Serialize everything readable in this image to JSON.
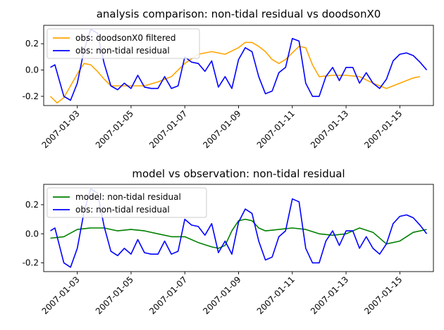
{
  "chart_data": [
    {
      "type": "line",
      "title": "analysis comparison: non-tidal residual vs doodsonX0",
      "xlabel": "",
      "ylabel": "",
      "xlim": [
        "2007-01-01T18:00",
        "2007-01-16T06:00"
      ],
      "ylim": [
        -0.27,
        0.34
      ],
      "yticks": [
        "-0.2",
        "0.0",
        "0.2"
      ],
      "xticks": [
        "2007-01-03",
        "2007-01-05",
        "2007-01-07",
        "2007-01-09",
        "2007-01-11",
        "2007-01-13",
        "2007-01-15"
      ],
      "legend_position": "top-left",
      "series": [
        {
          "name": "obs: doodsonX0 filtered",
          "color": "#ffa500",
          "x": [
            "2007-01-02T00:00",
            "2007-01-02T06:00",
            "2007-01-02T12:00",
            "2007-01-02T18:00",
            "2007-01-03T00:00",
            "2007-01-03T06:00",
            "2007-01-03T12:00",
            "2007-01-03T18:00",
            "2007-01-04T00:00",
            "2007-01-04T06:00",
            "2007-01-04T12:00",
            "2007-01-04T18:00",
            "2007-01-05T00:00",
            "2007-01-05T12:00",
            "2007-01-06T00:00",
            "2007-01-06T12:00",
            "2007-01-07T00:00",
            "2007-01-07T12:00",
            "2007-01-08T00:00",
            "2007-01-08T12:00",
            "2007-01-09T00:00",
            "2007-01-09T06:00",
            "2007-01-09T12:00",
            "2007-01-09T18:00",
            "2007-01-10T00:00",
            "2007-01-10T06:00",
            "2007-01-10T12:00",
            "2007-01-10T18:00",
            "2007-01-11T00:00",
            "2007-01-11T06:00",
            "2007-01-11T12:00",
            "2007-01-11T18:00",
            "2007-01-12T00:00",
            "2007-01-12T12:00",
            "2007-01-13T00:00",
            "2007-01-13T12:00",
            "2007-01-14T00:00",
            "2007-01-14T12:00",
            "2007-01-15T00:00",
            "2007-01-15T12:00",
            "2007-01-15T18:00"
          ],
          "y": [
            -0.2,
            -0.25,
            -0.21,
            -0.12,
            -0.03,
            0.05,
            0.04,
            -0.01,
            -0.07,
            -0.12,
            -0.12,
            -0.12,
            -0.12,
            -0.12,
            -0.09,
            -0.05,
            0.05,
            0.12,
            0.14,
            0.12,
            0.17,
            0.21,
            0.21,
            0.18,
            0.14,
            0.08,
            0.05,
            0.08,
            0.13,
            0.18,
            0.17,
            0.04,
            -0.05,
            -0.04,
            -0.04,
            -0.05,
            -0.1,
            -0.14,
            -0.1,
            -0.06,
            -0.05
          ]
        },
        {
          "name": "obs: non-tidal residual",
          "color": "#0000ff",
          "x": [
            "2007-01-02T00:00",
            "2007-01-02T04:00",
            "2007-01-02T12:00",
            "2007-01-02T18:00",
            "2007-01-03T00:00",
            "2007-01-03T06:00",
            "2007-01-03T12:00",
            "2007-01-03T18:00",
            "2007-01-04T00:00",
            "2007-01-04T06:00",
            "2007-01-04T12:00",
            "2007-01-04T18:00",
            "2007-01-05T00:00",
            "2007-01-05T06:00",
            "2007-01-05T12:00",
            "2007-01-05T18:00",
            "2007-01-06T00:00",
            "2007-01-06T06:00",
            "2007-01-06T12:00",
            "2007-01-06T18:00",
            "2007-01-07T00:00",
            "2007-01-07T06:00",
            "2007-01-07T12:00",
            "2007-01-07T18:00",
            "2007-01-08T00:00",
            "2007-01-08T06:00",
            "2007-01-08T12:00",
            "2007-01-08T18:00",
            "2007-01-09T00:00",
            "2007-01-09T06:00",
            "2007-01-09T12:00",
            "2007-01-09T18:00",
            "2007-01-10T00:00",
            "2007-01-10T06:00",
            "2007-01-10T12:00",
            "2007-01-10T18:00",
            "2007-01-11T00:00",
            "2007-01-11T06:00",
            "2007-01-11T12:00",
            "2007-01-11T18:00",
            "2007-01-12T00:00",
            "2007-01-12T06:00",
            "2007-01-12T12:00",
            "2007-01-12T18:00",
            "2007-01-13T00:00",
            "2007-01-13T06:00",
            "2007-01-13T12:00",
            "2007-01-13T18:00",
            "2007-01-14T00:00",
            "2007-01-14T06:00",
            "2007-01-14T12:00",
            "2007-01-14T18:00",
            "2007-01-15T00:00",
            "2007-01-15T06:00",
            "2007-01-15T12:00",
            "2007-01-15T18:00",
            "2007-01-16T00:00"
          ],
          "y": [
            0.02,
            0.04,
            -0.2,
            -0.23,
            -0.1,
            0.15,
            0.31,
            0.28,
            0.05,
            -0.12,
            -0.15,
            -0.1,
            -0.14,
            -0.04,
            -0.13,
            -0.14,
            -0.14,
            -0.05,
            -0.14,
            -0.12,
            0.1,
            0.06,
            0.05,
            -0.01,
            0.07,
            -0.13,
            -0.05,
            -0.14,
            0.08,
            0.17,
            0.14,
            -0.05,
            -0.18,
            -0.16,
            -0.02,
            0.02,
            0.24,
            0.22,
            -0.1,
            -0.2,
            -0.2,
            -0.05,
            0.02,
            -0.08,
            0.02,
            0.02,
            -0.1,
            -0.02,
            -0.1,
            -0.14,
            -0.07,
            0.07,
            0.12,
            0.13,
            0.11,
            0.06,
            0.0
          ]
        }
      ]
    },
    {
      "type": "line",
      "title": "model vs observation: non-tidal residual",
      "xlabel": "",
      "ylabel": "",
      "xlim": [
        "2007-01-01T18:00",
        "2007-01-16T06:00"
      ],
      "ylim": [
        -0.26,
        0.34
      ],
      "yticks": [
        "-0.2",
        "0.0",
        "0.2"
      ],
      "xticks": [
        "2007-01-03",
        "2007-01-05",
        "2007-01-07",
        "2007-01-09",
        "2007-01-11",
        "2007-01-13",
        "2007-01-15"
      ],
      "legend_position": "top-left",
      "series": [
        {
          "name": "model: non-tidal residual",
          "color": "#008000",
          "x": [
            "2007-01-02T00:00",
            "2007-01-02T12:00",
            "2007-01-03T00:00",
            "2007-01-03T12:00",
            "2007-01-04T00:00",
            "2007-01-04T12:00",
            "2007-01-05T00:00",
            "2007-01-05T12:00",
            "2007-01-06T00:00",
            "2007-01-06T12:00",
            "2007-01-07T00:00",
            "2007-01-07T12:00",
            "2007-01-08T00:00",
            "2007-01-08T06:00",
            "2007-01-08T12:00",
            "2007-01-08T18:00",
            "2007-01-09T00:00",
            "2007-01-09T06:00",
            "2007-01-09T12:00",
            "2007-01-09T18:00",
            "2007-01-10T00:00",
            "2007-01-10T12:00",
            "2007-01-11T00:00",
            "2007-01-11T12:00",
            "2007-01-12T00:00",
            "2007-01-12T12:00",
            "2007-01-13T00:00",
            "2007-01-13T12:00",
            "2007-01-14T00:00",
            "2007-01-14T12:00",
            "2007-01-15T00:00",
            "2007-01-15T12:00",
            "2007-01-16T00:00"
          ],
          "y": [
            -0.03,
            -0.02,
            0.03,
            0.04,
            0.04,
            0.02,
            0.03,
            0.02,
            0.0,
            -0.02,
            -0.02,
            -0.06,
            -0.09,
            -0.1,
            -0.08,
            0.02,
            0.09,
            0.1,
            0.09,
            0.04,
            0.02,
            0.03,
            0.04,
            0.03,
            0.0,
            -0.01,
            0.0,
            0.04,
            0.01,
            -0.07,
            -0.05,
            0.01,
            0.03
          ]
        },
        {
          "name": "obs: non-tidal residual",
          "color": "#0000ff",
          "x": [
            "2007-01-02T00:00",
            "2007-01-02T04:00",
            "2007-01-02T12:00",
            "2007-01-02T18:00",
            "2007-01-03T00:00",
            "2007-01-03T06:00",
            "2007-01-03T12:00",
            "2007-01-03T18:00",
            "2007-01-04T00:00",
            "2007-01-04T06:00",
            "2007-01-04T12:00",
            "2007-01-04T18:00",
            "2007-01-05T00:00",
            "2007-01-05T06:00",
            "2007-01-05T12:00",
            "2007-01-05T18:00",
            "2007-01-06T00:00",
            "2007-01-06T06:00",
            "2007-01-06T12:00",
            "2007-01-06T18:00",
            "2007-01-07T00:00",
            "2007-01-07T06:00",
            "2007-01-07T12:00",
            "2007-01-07T18:00",
            "2007-01-08T00:00",
            "2007-01-08T06:00",
            "2007-01-08T12:00",
            "2007-01-08T18:00",
            "2007-01-09T00:00",
            "2007-01-09T06:00",
            "2007-01-09T12:00",
            "2007-01-09T18:00",
            "2007-01-10T00:00",
            "2007-01-10T06:00",
            "2007-01-10T12:00",
            "2007-01-10T18:00",
            "2007-01-11T00:00",
            "2007-01-11T06:00",
            "2007-01-11T12:00",
            "2007-01-11T18:00",
            "2007-01-12T00:00",
            "2007-01-12T06:00",
            "2007-01-12T12:00",
            "2007-01-12T18:00",
            "2007-01-13T00:00",
            "2007-01-13T06:00",
            "2007-01-13T12:00",
            "2007-01-13T18:00",
            "2007-01-14T00:00",
            "2007-01-14T06:00",
            "2007-01-14T12:00",
            "2007-01-14T18:00",
            "2007-01-15T00:00",
            "2007-01-15T06:00",
            "2007-01-15T12:00",
            "2007-01-15T18:00",
            "2007-01-16T00:00"
          ],
          "y": [
            0.02,
            0.04,
            -0.2,
            -0.23,
            -0.1,
            0.15,
            0.31,
            0.28,
            0.05,
            -0.12,
            -0.15,
            -0.1,
            -0.14,
            -0.04,
            -0.13,
            -0.14,
            -0.14,
            -0.05,
            -0.14,
            -0.12,
            0.1,
            0.06,
            0.05,
            -0.01,
            0.07,
            -0.13,
            -0.05,
            -0.14,
            0.08,
            0.17,
            0.14,
            -0.05,
            -0.18,
            -0.16,
            -0.02,
            0.02,
            0.24,
            0.22,
            -0.1,
            -0.2,
            -0.2,
            -0.05,
            0.02,
            -0.08,
            0.02,
            0.02,
            -0.1,
            -0.02,
            -0.1,
            -0.14,
            -0.07,
            0.07,
            0.12,
            0.13,
            0.11,
            0.06,
            0.0
          ]
        }
      ]
    }
  ]
}
